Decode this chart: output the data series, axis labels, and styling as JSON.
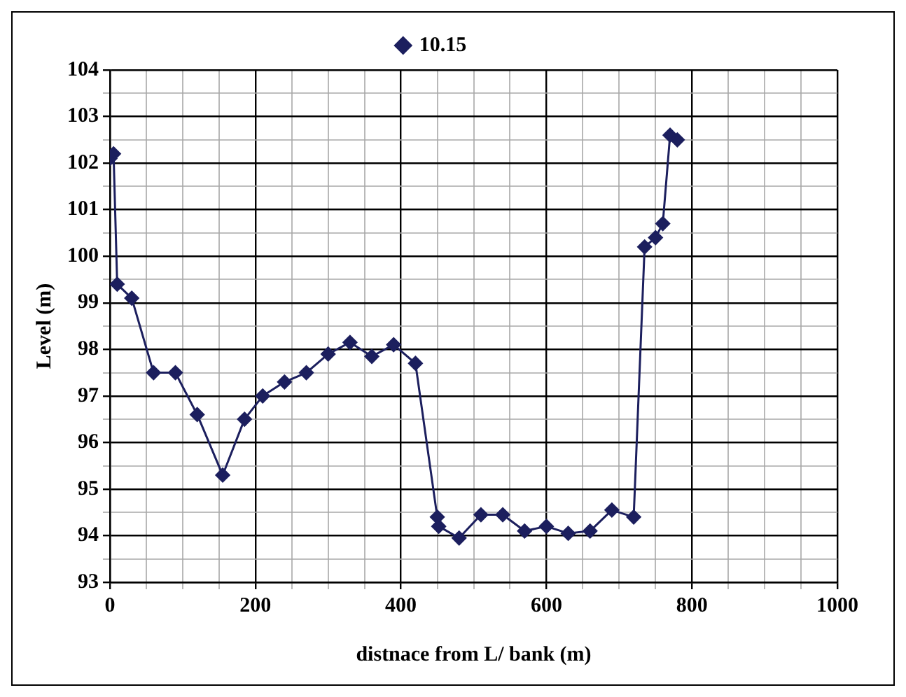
{
  "chart_data": {
    "type": "line",
    "xlabel": "distnace from L/ bank (m)",
    "ylabel": "Level (m)",
    "x": [
      0,
      5,
      10,
      30,
      60,
      90,
      120,
      155,
      185,
      210,
      240,
      270,
      300,
      330,
      360,
      390,
      420,
      450,
      452,
      480,
      510,
      540,
      570,
      600,
      630,
      660,
      690,
      720,
      735,
      750,
      760,
      770,
      780
    ],
    "series": [
      {
        "name": "10.15",
        "color": "#1c1f5e",
        "values": [
          102.1,
          102.2,
          99.4,
          99.1,
          97.5,
          97.5,
          96.6,
          95.3,
          96.5,
          97.0,
          97.3,
          97.5,
          97.9,
          98.15,
          97.85,
          98.1,
          97.7,
          94.4,
          94.2,
          93.95,
          94.45,
          94.45,
          94.1,
          94.2,
          94.05,
          94.1,
          94.55,
          94.4,
          100.2,
          100.4,
          100.7,
          102.6,
          102.5
        ]
      }
    ],
    "xlim": [
      0,
      1000
    ],
    "xticks": [
      0,
      {
        "value": 50,
        "label": null
      },
      {
        "value": 100,
        "label": null
      },
      {
        "value": 150,
        "label": null
      },
      200,
      {
        "value": 250,
        "label": null
      },
      {
        "value": 300,
        "label": null
      },
      {
        "value": 350,
        "label": null
      },
      400,
      {
        "value": 450,
        "label": null
      },
      {
        "value": 500,
        "label": null
      },
      {
        "value": 550,
        "label": null
      },
      600,
      {
        "value": 650,
        "label": null
      },
      {
        "value": 700,
        "label": null
      },
      {
        "value": 750,
        "label": null
      },
      800,
      {
        "value": 850,
        "label": null
      },
      {
        "value": 900,
        "label": null
      },
      {
        "value": 950,
        "label": null
      },
      1000
    ],
    "ylim": [
      93,
      104
    ],
    "yticks": [
      93,
      {
        "value": 93.5,
        "label": null
      },
      94,
      {
        "value": 94.5,
        "label": null
      },
      95,
      {
        "value": 95.5,
        "label": null
      },
      96,
      {
        "value": 96.5,
        "label": null
      },
      97,
      {
        "value": 97.5,
        "label": null
      },
      98,
      {
        "value": 98.5,
        "label": null
      },
      99,
      {
        "value": 99.5,
        "label": null
      },
      100,
      {
        "value": 100.5,
        "label": null
      },
      101,
      {
        "value": 101.5,
        "label": null
      },
      102,
      {
        "value": 102.5,
        "label": null
      },
      103,
      {
        "value": 103.5,
        "label": null
      },
      104
    ],
    "grid": true,
    "legend": "top",
    "marker": "diamond",
    "line_style": "solid"
  }
}
